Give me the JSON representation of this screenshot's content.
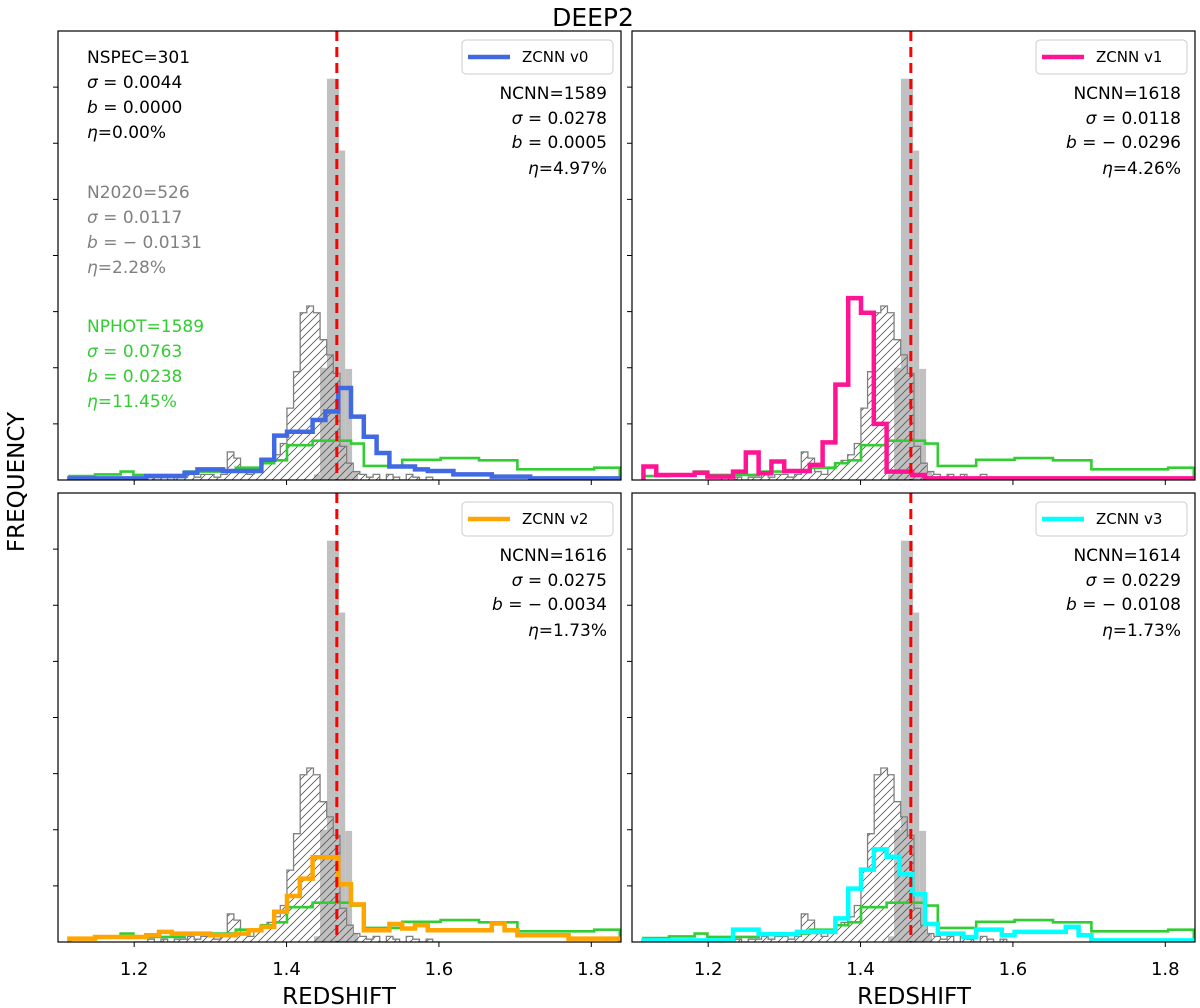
{
  "chart_data": {
    "type": "histogram",
    "title": "DEEP2",
    "xlabel": "REDSHIFT",
    "ylabel": "FREQUENCY",
    "xlim": [
      1.1,
      1.839
    ],
    "ylim": [
      0,
      8
    ],
    "xticks": [
      1.2,
      1.4,
      1.6,
      1.8
    ],
    "xtick_labels": [
      "1.2",
      "1.4",
      "1.6",
      "1.8"
    ],
    "yticks": [
      1,
      2,
      3,
      4,
      5,
      6,
      7
    ],
    "ytick_labels_shown": false,
    "grid": false,
    "legend_position": "top-right",
    "reference_redshift": 1.466,
    "colors": {
      "spec_fill": "#c0c0c0",
      "n2020_edge": "#808080",
      "phot": "#32cd32",
      "reference_line": "#ff0000",
      "stats_black": "#000000",
      "stats_gray": "#808080",
      "stats_green": "#32cd32"
    },
    "spec_hist": {
      "name": "NSPEC",
      "edges": [
        1.436,
        1.444,
        1.453,
        1.461,
        1.469,
        1.477,
        1.486,
        1.494
      ],
      "values": [
        0.1,
        2.0,
        7.15,
        7.15,
        5.87,
        1.98,
        0.15
      ]
    },
    "n2020_hist": {
      "name": "N2020",
      "start": 1.2004,
      "bin_width": 0.0087,
      "values": [
        0,
        0,
        0.05,
        0,
        0.05,
        0,
        0.05,
        0.05,
        0.1,
        0.05,
        0.1,
        0.1,
        0.05,
        0.1,
        0.5,
        0.39,
        0.15,
        0.1,
        0.2,
        0.3,
        0.35,
        0.45,
        0.65,
        1.28,
        1.93,
        2.98,
        3.1,
        2.98,
        2.5,
        2.23,
        1.9,
        0.6,
        0.3,
        0.15,
        0.1,
        0.05,
        0.1,
        0,
        0.1,
        0.05,
        0,
        0.1,
        0.05,
        0,
        0.05,
        0
      ]
    },
    "phot_hist": {
      "name": "NPHOT",
      "start": 1.115,
      "bin_width": 0.0168,
      "values": [
        0.07,
        0.07,
        0.1,
        0.1,
        0.15,
        0.09,
        0.09,
        0.09,
        0.09,
        0.15,
        0.15,
        0.15,
        0.15,
        0.22,
        0.22,
        0.3,
        0.35,
        0.62,
        0.62,
        0.7,
        0.7,
        0.7,
        0.65,
        0.25,
        0.25,
        0.25,
        0.36,
        0.36,
        0.36,
        0.39,
        0.39,
        0.39,
        0.35,
        0.35,
        0.35,
        0.19,
        0.19,
        0.19,
        0.19,
        0.19,
        0.19,
        0.22,
        0.22
      ]
    },
    "cnn_bins": {
      "start": 1.115,
      "bin_width": 0.0168
    },
    "left_stats": [
      {
        "color": "#000000",
        "lines": [
          {
            "sym": "",
            "text": "NSPEC=301"
          },
          {
            "sym": "σ",
            "text": " = 0.0044"
          },
          {
            "sym": "b",
            "text": " = 0.0000"
          },
          {
            "sym": "η",
            "text": "=0.00%"
          }
        ]
      },
      {
        "color": "#808080",
        "lines": [
          {
            "sym": "",
            "text": "N2020=526"
          },
          {
            "sym": "σ",
            "text": " = 0.0117"
          },
          {
            "sym": "b",
            "text": " = − 0.0131"
          },
          {
            "sym": "η",
            "text": "=2.28%"
          }
        ]
      },
      {
        "color": "#32cd32",
        "lines": [
          {
            "sym": "",
            "text": "NPHOT=1589"
          },
          {
            "sym": "σ",
            "text": " = 0.0763"
          },
          {
            "sym": "b",
            "text": " = 0.0238"
          },
          {
            "sym": "η",
            "text": "=11.45%"
          }
        ]
      }
    ],
    "panels": [
      {
        "legend": "ZCNN v0",
        "color": "#4169e1",
        "values": [
          0.03,
          0.03,
          0.03,
          0.03,
          0.03,
          0.03,
          0.07,
          0.07,
          0.07,
          0.13,
          0.19,
          0.19,
          0.16,
          0.16,
          0.16,
          0.36,
          0.79,
          0.86,
          0.86,
          1.07,
          1.22,
          1.64,
          1.13,
          0.77,
          0.48,
          0.24,
          0.24,
          0.19,
          0.16,
          0.16,
          0.1,
          0.1,
          0.1,
          0.06,
          0.06,
          0.06,
          0.03,
          0.03,
          0.03,
          0.03,
          0.03,
          0.03,
          0.03
        ],
        "stats": [
          {
            "sym": "",
            "text": "NCNN=1589"
          },
          {
            "sym": "σ",
            "text": " = 0.0278"
          },
          {
            "sym": "b",
            "text": " = 0.0005"
          },
          {
            "sym": "η",
            "text": "=4.97%"
          }
        ]
      },
      {
        "legend": "ZCNN v1",
        "color": "#ff1493",
        "values": [
          0.24,
          0.09,
          0.09,
          0.09,
          0.13,
          0.06,
          0.06,
          0.15,
          0.49,
          0.12,
          0.33,
          0.16,
          0.16,
          0.27,
          0.67,
          1.7,
          3.24,
          2.98,
          1.0,
          0.15,
          0.15,
          0.09,
          0.03,
          0.03,
          0.03,
          0.03,
          0.03,
          0.03,
          0.03,
          0.03,
          0.03,
          0.03,
          0.03,
          0.03,
          0.03,
          0.03,
          0.03,
          0.03,
          0.03,
          0.03,
          0.03,
          0.03,
          0.03
        ],
        "stats": [
          {
            "sym": "",
            "text": "NCNN=1618"
          },
          {
            "sym": "σ",
            "text": " = 0.0118"
          },
          {
            "sym": "b",
            "text": " = − 0.0296"
          },
          {
            "sym": "η",
            "text": "=4.26%"
          }
        ]
      },
      {
        "legend": "ZCNN v2",
        "color": "#ffa500",
        "values": [
          0.06,
          0.06,
          0.09,
          0.09,
          0.09,
          0.09,
          0.12,
          0.18,
          0.15,
          0.15,
          0.15,
          0.12,
          0.12,
          0.15,
          0.21,
          0.27,
          0.54,
          0.82,
          1.13,
          1.51,
          1.51,
          1.03,
          0.67,
          0.21,
          0.21,
          0.32,
          0.24,
          0.3,
          0.21,
          0.21,
          0.21,
          0.21,
          0.21,
          0.33,
          0.21,
          0.12,
          0.12,
          0.12,
          0.12,
          0.06,
          0.06,
          0.06,
          0.06
        ],
        "stats": [
          {
            "sym": "",
            "text": "NCNN=1616"
          },
          {
            "sym": "σ",
            "text": " = 0.0275"
          },
          {
            "sym": "b",
            "text": " = − 0.0034"
          },
          {
            "sym": "η",
            "text": "=1.73%"
          }
        ]
      },
      {
        "legend": "ZCNN v3",
        "color": "#00ffff",
        "values": [
          0.03,
          0.03,
          0.03,
          0.03,
          0.03,
          0.03,
          0.03,
          0.22,
          0.22,
          0.14,
          0.14,
          0.14,
          0.18,
          0.18,
          0.18,
          0.42,
          0.95,
          1.29,
          1.65,
          1.52,
          1.21,
          0.85,
          0.32,
          0.15,
          0.15,
          0.09,
          0.22,
          0.22,
          0.12,
          0.18,
          0.18,
          0.18,
          0.18,
          0.27,
          0.12,
          0.03,
          0.03,
          0.03,
          0.03,
          0.03,
          0.03,
          0.03,
          0.03
        ],
        "stats": [
          {
            "sym": "",
            "text": "NCNN=1614"
          },
          {
            "sym": "σ",
            "text": " = 0.0229"
          },
          {
            "sym": "b",
            "text": " = − 0.0108"
          },
          {
            "sym": "η",
            "text": "=1.73%"
          }
        ]
      }
    ]
  }
}
